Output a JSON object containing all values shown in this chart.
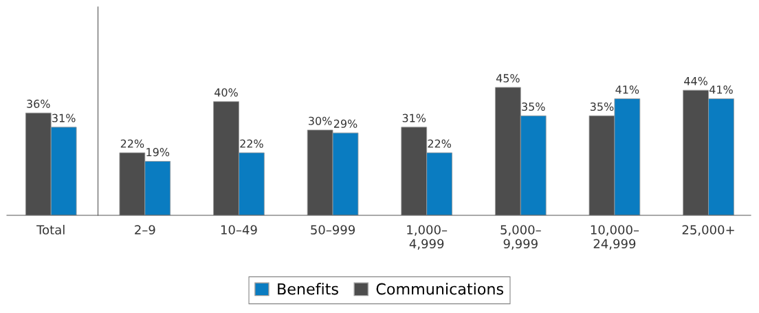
{
  "chart_data": {
    "type": "bar",
    "categories": [
      "Total",
      "2–9",
      "10–49",
      "50–999",
      "1,000–\n4,999",
      "5,000–\n9,999",
      "10,000–\n24,999",
      "25,000+"
    ],
    "series": [
      {
        "name": "Communications",
        "color": "#4d4d4d",
        "values": [
          36,
          22,
          40,
          30,
          31,
          45,
          35,
          44
        ],
        "value_labels": [
          "36%",
          "22%",
          "40%",
          "30%",
          "31%",
          "45%",
          "35%",
          "44%"
        ]
      },
      {
        "name": "Benefits",
        "color": "#0a7cc1",
        "values": [
          31,
          19,
          22,
          29,
          22,
          35,
          41,
          41
        ],
        "value_labels": [
          "31%",
          "19%",
          "22%",
          "29%",
          "22%",
          "35%",
          "41%",
          "41%"
        ]
      }
    ],
    "legend": "bottom",
    "grid": false
  }
}
